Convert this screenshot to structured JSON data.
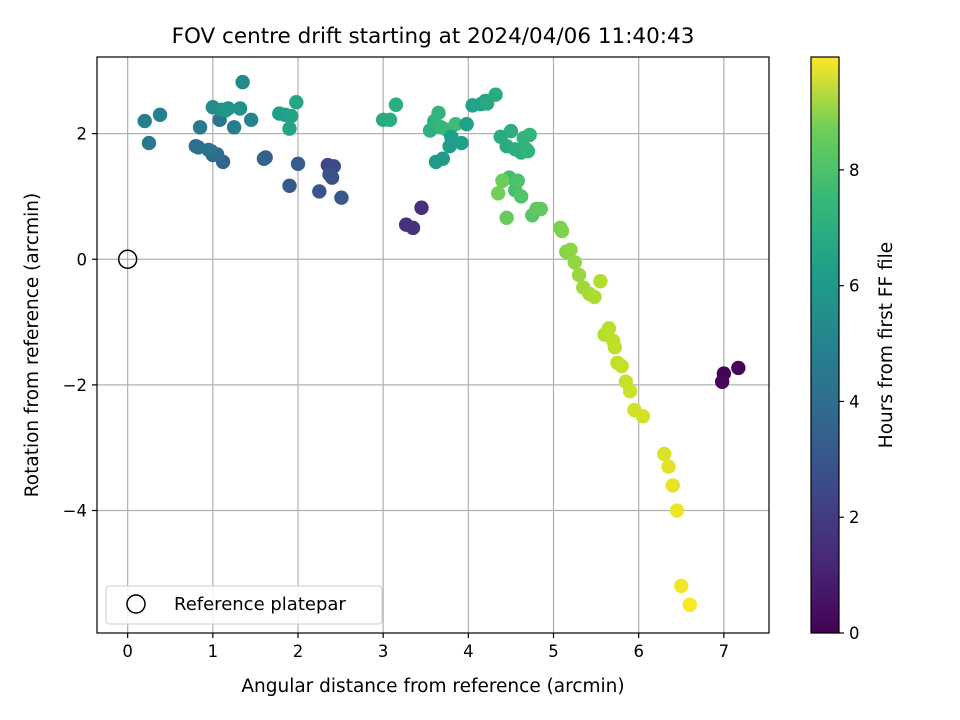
{
  "chart_data": {
    "type": "scatter",
    "title": "FOV centre drift starting at 2024/04/06 11:40:43",
    "xlabel": "Angular distance from reference (arcmin)",
    "ylabel": "Rotation from reference (arcmin)",
    "xlim": [
      -0.36,
      7.53
    ],
    "ylim": [
      -5.95,
      3.22
    ],
    "xticks": [
      0,
      1,
      2,
      3,
      4,
      5,
      6,
      7
    ],
    "yticks": [
      -4,
      -2,
      0,
      2
    ],
    "xtick_labels": [
      "0",
      "1",
      "2",
      "3",
      "4",
      "5",
      "6",
      "7"
    ],
    "ytick_labels": [
      "−4",
      "−2",
      "0",
      "2"
    ],
    "grid": true,
    "legend": {
      "position": "lower-left",
      "entries": [
        "Reference platepar"
      ]
    },
    "reference_point": {
      "x": 0,
      "y": 0,
      "marker": "open-circle"
    },
    "colorbar": {
      "label": "Hours from first FF file",
      "colormap": "viridis",
      "range": [
        0,
        9.95
      ],
      "ticks": [
        0,
        2,
        4,
        6,
        8
      ],
      "tick_labels": [
        "0",
        "2",
        "4",
        "6",
        "8"
      ]
    },
    "series": [
      {
        "color_values": [
          0.1,
          0.15,
          0.2,
          1.3,
          1.4,
          1.5,
          2.1,
          2.3,
          2.4,
          2.5,
          2.6,
          2.7,
          2.8,
          2.9,
          3.0,
          3.1,
          3.2,
          3.3,
          3.4,
          3.5,
          3.6,
          3.7,
          3.8,
          3.9,
          4.0,
          4.1,
          4.2,
          4.3,
          4.4,
          4.5,
          4.7,
          4.8,
          4.9,
          5.0,
          5.1,
          5.2,
          5.5,
          5.6,
          5.7,
          5.8,
          5.9,
          6.0,
          6.1,
          6.2,
          6.3,
          6.4,
          6.5,
          6.6,
          6.7,
          6.8,
          5.4,
          5.45,
          5.5,
          5.55,
          5.6,
          5.65,
          5.7,
          5.75,
          5.8,
          6.0,
          6.05,
          6.1,
          6.15,
          6.2,
          6.25,
          6.3,
          6.35,
          6.4,
          6.45,
          6.5,
          6.9,
          7.0,
          7.1,
          7.2,
          7.3,
          7.4,
          7.5,
          7.6,
          7.7,
          7.8,
          7.9,
          8.0,
          8.1,
          8.2,
          8.3,
          8.4,
          8.5,
          8.6,
          8.7,
          8.8,
          8.85,
          8.9,
          8.95,
          9.0,
          9.05,
          9.1,
          9.15,
          9.2,
          9.25,
          9.3,
          9.4,
          9.5,
          9.6,
          9.7,
          9.8,
          9.9
        ],
        "x": [
          7.0,
          7.17,
          6.98,
          3.45,
          3.27,
          3.35,
          2.35,
          2.42,
          2.4,
          2.37,
          2.25,
          2.51,
          1.9,
          2.0,
          1.62,
          1.6,
          1.12,
          1.0,
          0.98,
          1.05,
          0.8,
          0.83,
          0.95,
          1.08,
          0.25,
          0.85,
          1.25,
          0.2,
          0.38,
          1.45,
          1.35,
          1.0,
          1.1,
          1.18,
          1.32,
          1.15,
          1.85,
          1.78,
          1.92,
          1.9,
          1.98,
          3.0,
          3.08,
          3.15,
          3.55,
          3.6,
          3.65,
          3.68,
          3.75,
          3.85,
          3.62,
          3.7,
          3.78,
          3.8,
          3.92,
          3.98,
          4.05,
          4.15,
          4.2,
          4.22,
          4.32,
          4.38,
          4.45,
          4.5,
          4.55,
          4.62,
          4.68,
          4.7,
          4.65,
          4.72,
          4.48,
          4.55,
          4.58,
          4.62,
          4.75,
          4.8,
          4.85,
          4.45,
          4.4,
          4.35,
          5.08,
          5.1,
          5.15,
          5.2,
          5.25,
          5.3,
          5.35,
          5.42,
          5.48,
          5.55,
          5.6,
          5.65,
          5.7,
          5.72,
          5.75,
          5.8,
          5.85,
          5.9,
          5.95,
          6.05,
          6.3,
          6.35,
          6.4,
          6.45,
          6.5,
          6.6
        ],
        "y": [
          -1.82,
          -1.73,
          -1.95,
          0.82,
          0.55,
          0.5,
          1.5,
          1.48,
          1.3,
          1.35,
          1.08,
          0.98,
          1.17,
          1.52,
          1.62,
          1.6,
          1.55,
          1.66,
          1.72,
          1.67,
          1.8,
          1.78,
          1.74,
          2.22,
          1.85,
          2.1,
          2.1,
          2.2,
          2.3,
          2.22,
          2.82,
          2.42,
          2.38,
          2.4,
          2.4,
          2.37,
          2.3,
          2.32,
          2.28,
          2.08,
          2.5,
          2.22,
          2.22,
          2.46,
          2.05,
          2.2,
          2.33,
          2.1,
          2.06,
          2.15,
          1.55,
          1.6,
          1.8,
          1.95,
          1.85,
          2.15,
          2.45,
          2.47,
          2.52,
          2.48,
          2.62,
          1.95,
          1.8,
          2.04,
          1.75,
          1.7,
          1.75,
          1.72,
          1.93,
          1.98,
          1.3,
          1.1,
          1.25,
          1.0,
          0.7,
          0.8,
          0.8,
          0.66,
          1.25,
          1.05,
          0.5,
          0.45,
          0.12,
          0.15,
          -0.05,
          -0.25,
          -0.45,
          -0.55,
          -0.6,
          -0.35,
          -1.2,
          -1.1,
          -1.3,
          -1.4,
          -1.65,
          -1.7,
          -1.95,
          -2.1,
          -2.4,
          -2.5,
          -3.1,
          -3.3,
          -3.6,
          -4.0,
          -5.2,
          -5.5
        ]
      }
    ]
  }
}
